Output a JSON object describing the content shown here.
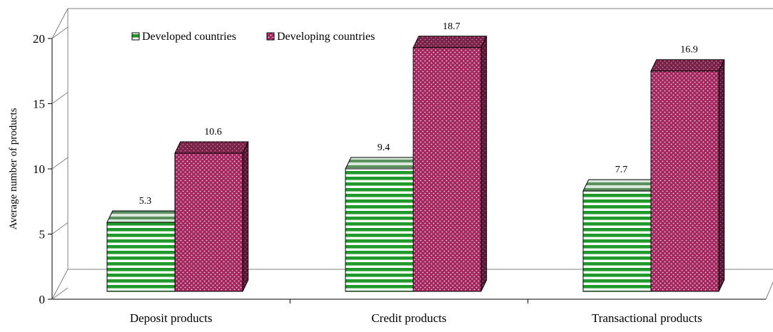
{
  "chart_data": {
    "type": "bar",
    "title": "",
    "xlabel": "",
    "ylabel": "Average number of products",
    "ylim": [
      0,
      20
    ],
    "yticks": [
      0,
      5,
      10,
      15,
      20
    ],
    "categories": [
      "Deposit products",
      "Credit products",
      "Transactional products"
    ],
    "series": [
      {
        "name": "Developed countries",
        "values": [
          5.3,
          9.4,
          7.7
        ],
        "data_labels": [
          "5.3",
          "9.4",
          "7.7"
        ],
        "color": "#1f9a2a",
        "pattern": "horizontal-stripes"
      },
      {
        "name": "Developing countries",
        "values": [
          10.6,
          18.7,
          16.9
        ],
        "data_labels": [
          "10.6",
          "18.7",
          "16.9"
        ],
        "color": "#a3275e",
        "pattern": "dots"
      }
    ],
    "legend_position": "top-left",
    "grid": false,
    "style": "3d-bar"
  }
}
